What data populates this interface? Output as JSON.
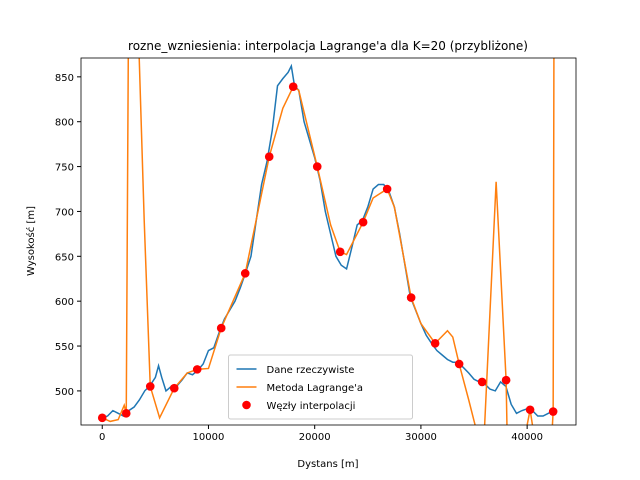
{
  "chart_data": {
    "type": "line",
    "title": "rozne_wzniesienia: interpolacja Lagrange'a dla K=20 (przybliżone)",
    "x_label": "Dystans [m]",
    "y_label": "Wysokość [m]",
    "xlim": [
      -2000,
      44600
    ],
    "ylim": [
      462,
      871
    ],
    "xticks": [
      0,
      10000,
      20000,
      30000,
      40000
    ],
    "yticks": [
      500,
      550,
      600,
      650,
      700,
      750,
      800,
      850
    ],
    "legend": "lower center",
    "series": [
      {
        "name": "Dane rzeczywiste",
        "color": "#1f77b4",
        "type": "line",
        "x": [
          0,
          500,
          1000,
          1500,
          2000,
          2500,
          3000,
          3500,
          4000,
          4500,
          5000,
          5300,
          5600,
          6000,
          6500,
          7000,
          7500,
          8000,
          8500,
          9000,
          9500,
          10000,
          10500,
          11000,
          11500,
          12000,
          12500,
          13000,
          13500,
          14000,
          14500,
          15000,
          15500,
          16000,
          16500,
          17000,
          17500,
          17800,
          18100,
          18500,
          19000,
          19500,
          20000,
          20500,
          21000,
          21500,
          22000,
          22500,
          23000,
          23500,
          24000,
          24500,
          25000,
          25500,
          26000,
          26500,
          27000,
          27500,
          28000,
          28500,
          29000,
          29500,
          30000,
          30500,
          31000,
          31500,
          32000,
          32500,
          33000,
          33500,
          34000,
          34500,
          35000,
          35500,
          36000,
          36500,
          37000,
          37500,
          38000,
          38500,
          39000,
          39500,
          40000,
          40500,
          41000,
          41500,
          42000,
          42500
        ],
        "values": [
          470,
          472,
          478,
          475,
          472,
          478,
          482,
          490,
          500,
          506,
          515,
          528,
          515,
          500,
          505,
          505,
          512,
          520,
          518,
          523,
          530,
          545,
          548,
          565,
          580,
          590,
          600,
          615,
          632,
          650,
          690,
          730,
          755,
          790,
          840,
          848,
          855,
          862,
          840,
          835,
          800,
          780,
          760,
          735,
          700,
          675,
          650,
          640,
          636,
          660,
          685,
          690,
          705,
          725,
          730,
          730,
          722,
          705,
          675,
          640,
          605,
          590,
          575,
          562,
          553,
          545,
          540,
          535,
          532,
          532,
          526,
          520,
          513,
          510,
          508,
          502,
          500,
          510,
          505,
          485,
          475,
          478,
          480,
          478,
          472,
          472,
          475,
          478
        ]
      },
      {
        "name": "Metoda Lagrange'a",
        "color": "#ff7f0e",
        "type": "line",
        "x": [
          0,
          750,
          1500,
          2070,
          2260,
          2450,
          2460,
          3470,
          3480,
          3950,
          4520,
          5400,
          6780,
          8000,
          8940,
          10000,
          11200,
          13460,
          15720,
          17000,
          17980,
          18500,
          20240,
          21500,
          22400,
          23000,
          24560,
          25500,
          26820,
          27500,
          29080,
          30000,
          31340,
          32500,
          33000,
          33600,
          34500,
          35100,
          35200,
          35900,
          36000,
          37080,
          38020,
          38100,
          38200,
          40000,
          40280,
          40500,
          40600,
          42380,
          42450,
          42520
        ],
        "values": [
          470,
          466,
          468,
          484,
          475,
          871,
          null,
          null,
          871,
          690,
          505,
          470,
          503,
          520,
          524,
          525,
          570,
          631,
          761,
          815,
          839,
          835,
          750,
          685,
          655,
          652,
          688,
          715,
          725,
          705,
          604,
          575,
          553,
          567,
          560,
          530,
          490,
          462,
          null,
          null,
          462,
          733,
          512,
          462,
          null,
          462,
          479,
          462,
          null,
          462,
          477,
          871
        ]
      },
      {
        "name": "Węzły interpolacji",
        "color": "#ff0000",
        "type": "scatter",
        "x": [
          0,
          2260,
          4520,
          6780,
          8940,
          11200,
          13460,
          15720,
          17980,
          20240,
          22400,
          24560,
          26820,
          29080,
          31340,
          33600,
          35760,
          38020,
          40280,
          42450
        ],
        "values": [
          470,
          475,
          505,
          503,
          524,
          570,
          631,
          761,
          839,
          750,
          655,
          688,
          725,
          604,
          553,
          530,
          510,
          512,
          479,
          477
        ]
      }
    ]
  }
}
